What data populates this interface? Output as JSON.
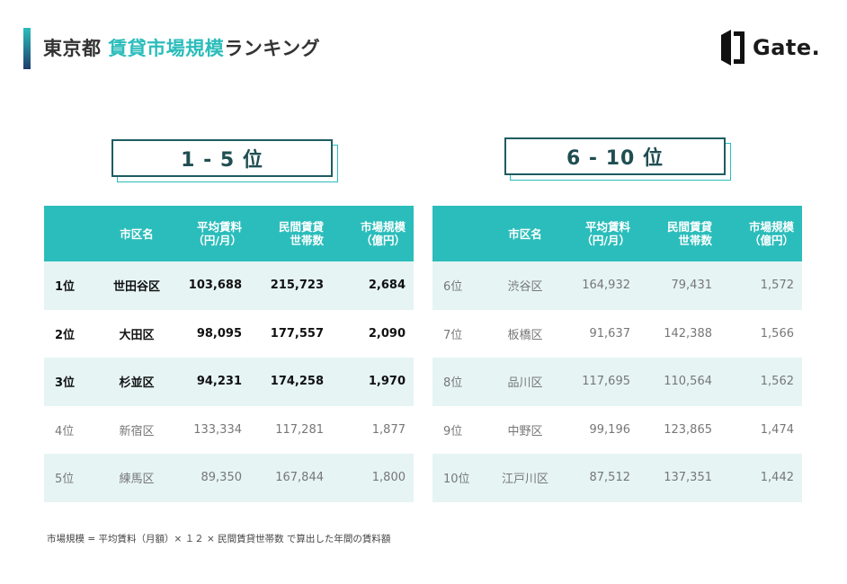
{
  "header": {
    "title_prefix": "東京都 ",
    "title_highlight": "賃貸市場規模",
    "title_suffix": "ランキング",
    "logo_text": "Gate."
  },
  "colors": {
    "accent": "#2bbdbb",
    "dark": "#1f4e52",
    "row_alt": "#e6f4f4"
  },
  "left": {
    "badge": "1 - 5 位",
    "headers": {
      "rank": "",
      "name": "市区名",
      "rent_l1": "平均賃料",
      "rent_l2": "（円/月）",
      "households_l1": "民間賃貸",
      "households_l2": "世帯数",
      "market_l1": "市場規模",
      "market_l2": "（億円）"
    },
    "rows": [
      {
        "rank": "1位",
        "name": "世田谷区",
        "rent": "103,688",
        "households": "215,723",
        "market": "2,684"
      },
      {
        "rank": "2位",
        "name": "大田区",
        "rent": "98,095",
        "households": "177,557",
        "market": "2,090"
      },
      {
        "rank": "3位",
        "name": "杉並区",
        "rent": "94,231",
        "households": "174,258",
        "market": "1,970"
      },
      {
        "rank": "4位",
        "name": "新宿区",
        "rent": "133,334",
        "households": "117,281",
        "market": "1,877"
      },
      {
        "rank": "5位",
        "name": "練馬区",
        "rent": "89,350",
        "households": "167,844",
        "market": "1,800"
      }
    ]
  },
  "right": {
    "badge": "6 - 10 位",
    "headers": {
      "rank": "",
      "name": "市区名",
      "rent_l1": "平均賃料",
      "rent_l2": "（円/月）",
      "households_l1": "民間賃貸",
      "households_l2": "世帯数",
      "market_l1": "市場規模",
      "market_l2": "（億円）"
    },
    "rows": [
      {
        "rank": "6位",
        "name": "渋谷区",
        "rent": "164,932",
        "households": "79,431",
        "market": "1,572"
      },
      {
        "rank": "7位",
        "name": "板橋区",
        "rent": "91,637",
        "households": "142,388",
        "market": "1,566"
      },
      {
        "rank": "8位",
        "name": "品川区",
        "rent": "117,695",
        "households": "110,564",
        "market": "1,562"
      },
      {
        "rank": "9位",
        "name": "中野区",
        "rent": "99,196",
        "households": "123,865",
        "market": "1,474"
      },
      {
        "rank": "10位",
        "name": "江戸川区",
        "rent": "87,512",
        "households": "137,351",
        "market": "1,442"
      }
    ]
  },
  "footnote": "市場規模 = 平均賃料（月額）× １２ × 民間賃貸世帯数 で算出した年間の賃料額"
}
